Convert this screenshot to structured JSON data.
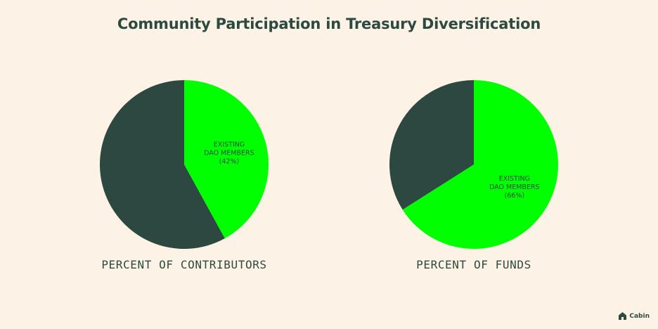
{
  "title": "Community Participation in Treasury Diversification",
  "colors": {
    "dark": "#2d4840",
    "green": "#00ff00",
    "text": "#2c4a3f",
    "background": "#fdf2e6"
  },
  "logo": {
    "text": "Cabin",
    "icon": "cabin-house-icon"
  },
  "chart_data": [
    {
      "type": "pie",
      "caption": "PERCENT OF CONTRIBUTORS",
      "slices": [
        {
          "label_lines": [
            "EXISTING",
            "DAO MEMBERS",
            "(42%)"
          ],
          "value": 42,
          "color": "#00ff00"
        },
        {
          "label_lines": [],
          "value": 58,
          "color": "#2d4840"
        }
      ]
    },
    {
      "type": "pie",
      "caption": "PERCENT OF FUNDS",
      "slices": [
        {
          "label_lines": [
            "EXISTING",
            "DAO MEMBERS",
            "(66%)"
          ],
          "value": 66,
          "color": "#00ff00"
        },
        {
          "label_lines": [],
          "value": 34,
          "color": "#2d4840"
        }
      ]
    }
  ]
}
